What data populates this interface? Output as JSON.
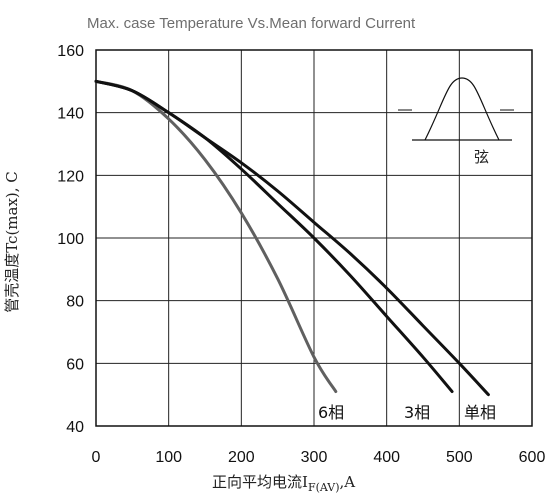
{
  "chart_data": {
    "type": "line",
    "title": "Max. case Temperature Vs.Mean forward Current",
    "xlabel_main": "正向平均电流I",
    "xlabel_sub": "F(AV)",
    "xlabel_end": ",A",
    "ylabel": "管壳温度Tc(max), C",
    "xlim": [
      0,
      600
    ],
    "ylim": [
      40,
      160
    ],
    "xticks": [
      0,
      100,
      200,
      300,
      400,
      500,
      600
    ],
    "yticks": [
      40,
      60,
      80,
      100,
      120,
      140,
      160
    ],
    "grid": true,
    "series": [
      {
        "name": "6相",
        "color": "#606060",
        "points": [
          [
            0,
            150
          ],
          [
            50,
            147
          ],
          [
            100,
            138
          ],
          [
            150,
            125
          ],
          [
            200,
            108
          ],
          [
            250,
            87
          ],
          [
            300,
            62
          ],
          [
            330,
            51
          ]
        ]
      },
      {
        "name": "3相",
        "color": "#111111",
        "points": [
          [
            0,
            150
          ],
          [
            50,
            147
          ],
          [
            100,
            140
          ],
          [
            150,
            132
          ],
          [
            200,
            122
          ],
          [
            250,
            111
          ],
          [
            300,
            100
          ],
          [
            350,
            88
          ],
          [
            400,
            75
          ],
          [
            450,
            62
          ],
          [
            490,
            51
          ]
        ]
      },
      {
        "name": "单相",
        "color": "#111111",
        "points": [
          [
            0,
            150
          ],
          [
            50,
            147
          ],
          [
            100,
            140
          ],
          [
            150,
            132
          ],
          [
            200,
            124
          ],
          [
            250,
            115
          ],
          [
            300,
            105
          ],
          [
            350,
            95
          ],
          [
            400,
            84
          ],
          [
            450,
            72
          ],
          [
            500,
            60
          ],
          [
            540,
            50
          ]
        ]
      }
    ],
    "inset_label": "弦",
    "colors": {
      "grid": "#222222",
      "background": "#ffffff"
    }
  }
}
